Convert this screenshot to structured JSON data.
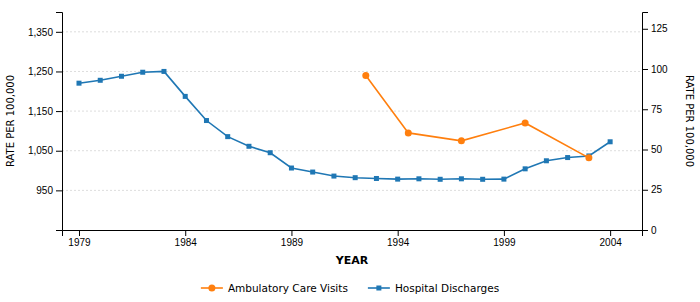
{
  "chart_data": {
    "type": "line",
    "xlabel": "YEAR",
    "ylabel": "RATE PER 100,000",
    "y2label": "RATE PER 100,000",
    "xlim": [
      1978.2,
      2005.5
    ],
    "xticks": [
      1979,
      1984,
      1989,
      1994,
      1999,
      2004
    ],
    "ylim": [
      850,
      1400
    ],
    "yticks": [
      950,
      {
        "value": 1050,
        "label": "1,050"
      },
      {
        "value": 1150,
        "label": "1,150"
      },
      {
        "value": 1250,
        "label": "1,250"
      },
      {
        "value": 1350,
        "label": "1,350"
      }
    ],
    "y2lim": [
      0,
      135.416
    ],
    "y2ticks": [
      0,
      25,
      50,
      75,
      100,
      125
    ],
    "grid": true,
    "legend": "bottom",
    "series": [
      {
        "name": "Ambulatory Care Visits",
        "marker": "circle",
        "x": [
          1992.5,
          1994.5,
          1997.0,
          2000.0,
          2003.0
        ],
        "values": [
          1240,
          1095,
          1075,
          1120,
          1032
        ]
      },
      {
        "name": "Hospital Discharges",
        "marker": "square",
        "axis": "y2",
        "x": [
          1979,
          1980,
          1981,
          1982,
          1983,
          1984,
          1985,
          1986,
          1987,
          1988,
          1989,
          1990,
          1991,
          1992,
          1993,
          1994,
          1995,
          1996,
          1997,
          1998,
          1999,
          2000,
          2001,
          2002,
          2003,
          2004
        ],
        "values": [
          91.2,
          93.0,
          95.5,
          98.0,
          98.5,
          83.0,
          68.0,
          58.0,
          52.0,
          48.0,
          38.5,
          36.0,
          33.5,
          32.5,
          32.0,
          31.6,
          31.8,
          31.5,
          31.8,
          31.5,
          31.6,
          38.0,
          43.0,
          45.0,
          46.0,
          54.8
        ]
      }
    ]
  }
}
